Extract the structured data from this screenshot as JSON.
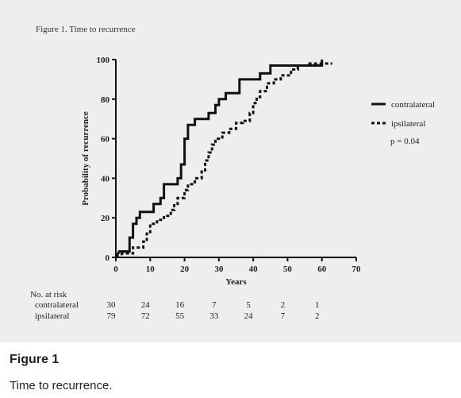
{
  "figure": {
    "inner_title": "Figure 1. Time to recurrence",
    "caption_title": "Figure 1",
    "caption_text": "Time to recurrence."
  },
  "chart_data": {
    "type": "line",
    "subtype": "step",
    "xlabel": "Years",
    "ylabel": "Probability of recurrence",
    "xlim": [
      0,
      70
    ],
    "ylim": [
      0,
      100
    ],
    "xticks": [
      0,
      10,
      20,
      30,
      40,
      50,
      60,
      70
    ],
    "yticks": [
      0,
      20,
      40,
      60,
      80,
      100
    ],
    "grid": false,
    "legend_position": "right",
    "annotation": "p = 0.04",
    "colors": {
      "line": "#111111",
      "background": "#eeeeee"
    },
    "series": [
      {
        "name": "contralateral",
        "style": "solid",
        "points": [
          [
            0,
            0
          ],
          [
            1,
            3
          ],
          [
            4,
            3
          ],
          [
            4,
            10
          ],
          [
            5,
            10
          ],
          [
            5,
            17
          ],
          [
            6,
            17
          ],
          [
            6,
            20
          ],
          [
            7,
            20
          ],
          [
            7,
            23
          ],
          [
            11,
            23
          ],
          [
            11,
            27
          ],
          [
            13,
            27
          ],
          [
            13,
            30
          ],
          [
            14,
            30
          ],
          [
            14,
            37
          ],
          [
            18,
            37
          ],
          [
            18,
            40
          ],
          [
            19,
            40
          ],
          [
            19,
            47
          ],
          [
            20,
            47
          ],
          [
            20,
            60
          ],
          [
            21,
            60
          ],
          [
            21,
            67
          ],
          [
            23,
            67
          ],
          [
            23,
            70
          ],
          [
            27,
            70
          ],
          [
            27,
            73
          ],
          [
            29,
            73
          ],
          [
            29,
            77
          ],
          [
            30,
            77
          ],
          [
            30,
            80
          ],
          [
            32,
            80
          ],
          [
            32,
            83
          ],
          [
            36,
            83
          ],
          [
            36,
            90
          ],
          [
            42,
            90
          ],
          [
            42,
            93
          ],
          [
            45,
            93
          ],
          [
            45,
            97
          ],
          [
            60,
            97
          ],
          [
            60,
            100
          ]
        ]
      },
      {
        "name": "ipsilateral",
        "style": "dotted",
        "points": [
          [
            0,
            0
          ],
          [
            2,
            2
          ],
          [
            5,
            2
          ],
          [
            5,
            5
          ],
          [
            8,
            5
          ],
          [
            8,
            8
          ],
          [
            9,
            8
          ],
          [
            9,
            12
          ],
          [
            10,
            12
          ],
          [
            10,
            17
          ],
          [
            12,
            17
          ],
          [
            12,
            19
          ],
          [
            14,
            19
          ],
          [
            14,
            21
          ],
          [
            16,
            21
          ],
          [
            16,
            24
          ],
          [
            17,
            24
          ],
          [
            17,
            27
          ],
          [
            18,
            27
          ],
          [
            18,
            30
          ],
          [
            20,
            30
          ],
          [
            20,
            34
          ],
          [
            21,
            34
          ],
          [
            21,
            37
          ],
          [
            23,
            37
          ],
          [
            23,
            40
          ],
          [
            25,
            40
          ],
          [
            25,
            44
          ],
          [
            26,
            44
          ],
          [
            26,
            49
          ],
          [
            27,
            49
          ],
          [
            27,
            53
          ],
          [
            28,
            53
          ],
          [
            28,
            57
          ],
          [
            29,
            57
          ],
          [
            29,
            60
          ],
          [
            31,
            60
          ],
          [
            31,
            63
          ],
          [
            33,
            63
          ],
          [
            33,
            65
          ],
          [
            35,
            65
          ],
          [
            35,
            68
          ],
          [
            37,
            68
          ],
          [
            37,
            69
          ],
          [
            39,
            69
          ],
          [
            39,
            73
          ],
          [
            40,
            73
          ],
          [
            40,
            78
          ],
          [
            41,
            78
          ],
          [
            41,
            81
          ],
          [
            42,
            81
          ],
          [
            42,
            84
          ],
          [
            44,
            84
          ],
          [
            44,
            88
          ],
          [
            46,
            88
          ],
          [
            46,
            90
          ],
          [
            48,
            90
          ],
          [
            48,
            92
          ],
          [
            51,
            92
          ],
          [
            51,
            95
          ],
          [
            53,
            95
          ],
          [
            53,
            97
          ],
          [
            56,
            97
          ],
          [
            56,
            98
          ],
          [
            60,
            98
          ],
          [
            63,
            98
          ]
        ]
      }
    ],
    "risk_table": {
      "header": "No. at risk",
      "times": [
        0,
        10,
        20,
        30,
        40,
        50,
        60
      ],
      "rows": [
        {
          "label": "contralateral",
          "values": [
            30,
            24,
            16,
            7,
            5,
            2,
            1
          ]
        },
        {
          "label": "ipsilateral",
          "values": [
            79,
            72,
            55,
            33,
            24,
            7,
            2
          ]
        }
      ]
    }
  }
}
